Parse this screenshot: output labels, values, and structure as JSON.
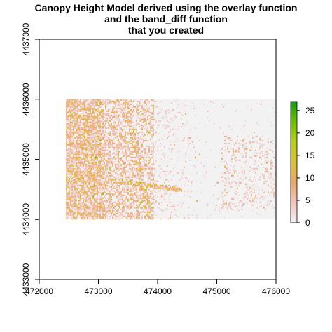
{
  "title_lines": [
    "Canopy Height Model derived using the overlay function",
    "and the band_diff function",
    "that you created"
  ],
  "chart_data": {
    "type": "heatmap",
    "title": "Canopy Height Model derived using the overlay function and the band_diff function that you created",
    "xlabel": "",
    "ylabel": "",
    "xlim": [
      472000,
      476000
    ],
    "ylim": [
      4433000,
      4437000
    ],
    "x_ticks": [
      472000,
      473000,
      474000,
      475000,
      476000
    ],
    "x_tick_labels": [
      "472000",
      "473000",
      "474000",
      "475000",
      "476000"
    ],
    "y_ticks": [
      4433000,
      4434000,
      4435000,
      4436000,
      4437000
    ],
    "y_tick_labels": [
      "4433000",
      "4434000",
      "4435000",
      "4436000",
      "4437000"
    ],
    "raster_extent": {
      "xmin": 472450,
      "xmax": 476000,
      "ymin": 4434000,
      "ymax": 4436000
    },
    "colorbar": {
      "range": [
        0,
        27
      ],
      "ticks": [
        0,
        5,
        10,
        15,
        20,
        25
      ],
      "tick_labels": [
        "0",
        "5",
        "10",
        "15",
        "20",
        "25"
      ],
      "colors": [
        "#f2f2f2",
        "#f1c4c0",
        "#e8a96a",
        "#dbc23c",
        "#b6cf1f",
        "#6fbf00",
        "#109a0f"
      ]
    },
    "grid": false,
    "legend": "right"
  }
}
